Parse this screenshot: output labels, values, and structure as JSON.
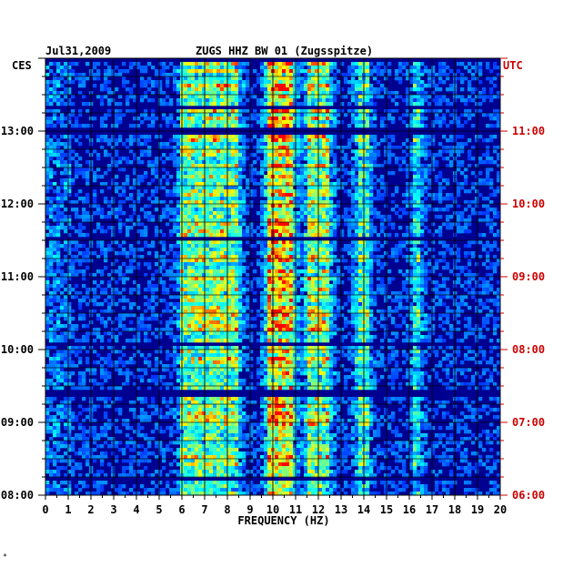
{
  "header": {
    "date": "Jul31,2009",
    "station": "ZUGS HHZ BW 01 (Zugsspitze)",
    "left_tz": "CES",
    "right_tz": "UTC"
  },
  "footer_mark": "*",
  "chart_data": {
    "type": "heatmap",
    "title": "ZUGS HHZ BW 01 (Zugsspitze)",
    "date": "Jul31,2009",
    "xlabel": "FREQUENCY (HZ)",
    "xlim": [
      0,
      20
    ],
    "x_ticks": [
      "0",
      "1",
      "2",
      "3",
      "4",
      "5",
      "6",
      "7",
      "8",
      "9",
      "10",
      "11",
      "12",
      "13",
      "14",
      "15",
      "16",
      "17",
      "18",
      "19",
      "20"
    ],
    "y_left_label": "CES",
    "y_right_label": "UTC",
    "y_left_ticks": [
      "08:00",
      "09:00",
      "10:00",
      "11:00",
      "12:00",
      "13:00"
    ],
    "y_right_ticks": [
      "06:00",
      "07:00",
      "08:00",
      "09:00",
      "10:00",
      "11:00"
    ],
    "time_range_ces": [
      "08:00",
      "14:00"
    ],
    "energy_bands_hz": [
      {
        "from": 6,
        "to": 8.5,
        "level": 0.55
      },
      {
        "from": 9.8,
        "to": 10.9,
        "level": 0.85
      },
      {
        "from": 11.5,
        "to": 12.5,
        "level": 0.6
      },
      {
        "from": 13.7,
        "to": 14.2,
        "level": 0.45
      },
      {
        "from": 16.2,
        "to": 16.5,
        "level": 0.35
      }
    ],
    "colormap": [
      "#000080",
      "#0000ff",
      "#00ffff",
      "#ffff00",
      "#ff0000"
    ],
    "grid": true
  }
}
